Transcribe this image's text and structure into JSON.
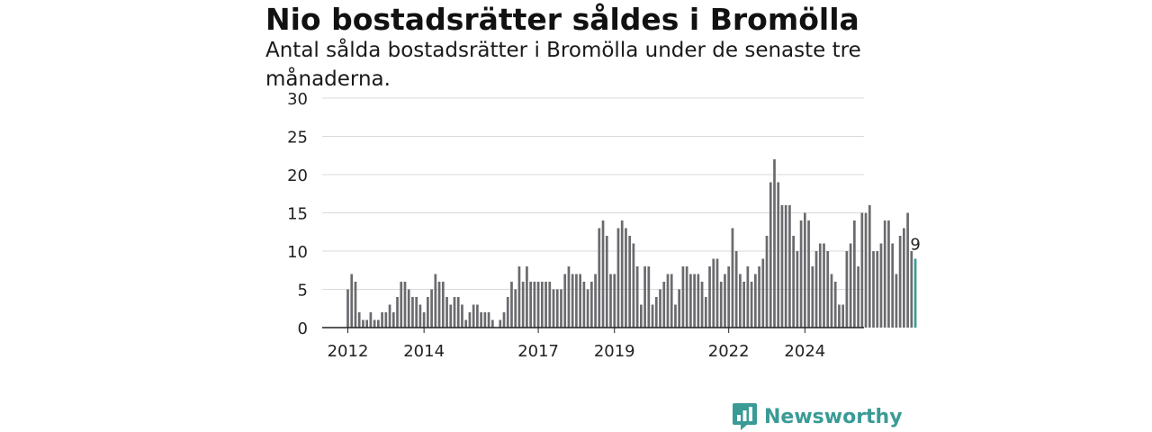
{
  "title": "Nio bostadsrätter såldes i Bromölla",
  "subtitle": "Antal sålda bostadsrätter i Bromölla under de senaste tre månaderna.",
  "brand": {
    "name": "Newsworthy",
    "icon": "newsworthy-logo-icon",
    "color": "#3a9b96"
  },
  "chart_data": {
    "type": "bar",
    "title": "Nio bostadsrätter såldes i Bromölla",
    "subtitle": "Antal sålda bostadsrätter i Bromölla under de senaste tre månaderna.",
    "xlabel": "",
    "ylabel": "",
    "ylim": [
      0,
      30
    ],
    "yticks": [
      0,
      5,
      10,
      15,
      20,
      25,
      30
    ],
    "xticks": [
      {
        "label": "2012",
        "index": 0
      },
      {
        "label": "2014",
        "index": 20
      },
      {
        "label": "2017",
        "index": 50
      },
      {
        "label": "2019",
        "index": 70
      },
      {
        "label": "2022",
        "index": 100
      },
      {
        "label": "2024",
        "index": 120
      }
    ],
    "grid": true,
    "bar_color": "#6b6b6f",
    "highlight_color": "#3a9b96",
    "values": [
      5,
      7,
      6,
      2,
      1,
      1,
      2,
      1,
      1,
      2,
      2,
      3,
      2,
      4,
      6,
      6,
      5,
      4,
      4,
      3,
      2,
      4,
      5,
      7,
      6,
      6,
      4,
      3,
      4,
      4,
      3,
      1,
      2,
      3,
      3,
      2,
      2,
      2,
      1,
      0,
      1,
      2,
      4,
      6,
      5,
      8,
      6,
      8,
      6,
      6,
      6,
      6,
      6,
      6,
      5,
      5,
      5,
      7,
      8,
      7,
      7,
      7,
      6,
      5,
      6,
      7,
      13,
      14,
      12,
      7,
      7,
      13,
      14,
      13,
      12,
      11,
      8,
      3,
      8,
      8,
      3,
      4,
      5,
      6,
      7,
      7,
      3,
      5,
      8,
      8,
      7,
      7,
      7,
      6,
      4,
      8,
      9,
      9,
      6,
      7,
      8,
      13,
      10,
      7,
      6,
      8,
      6,
      7,
      8,
      9,
      12,
      19,
      22,
      19,
      16,
      16,
      16,
      12,
      10,
      14,
      15,
      14,
      8,
      10,
      11,
      11,
      10,
      7,
      6,
      3,
      3,
      10,
      11,
      14,
      8,
      15,
      15,
      16,
      10,
      10,
      11,
      14,
      14,
      11,
      7,
      12,
      13,
      15,
      10,
      9
    ],
    "highlight": {
      "label": "9",
      "value": 9
    }
  }
}
